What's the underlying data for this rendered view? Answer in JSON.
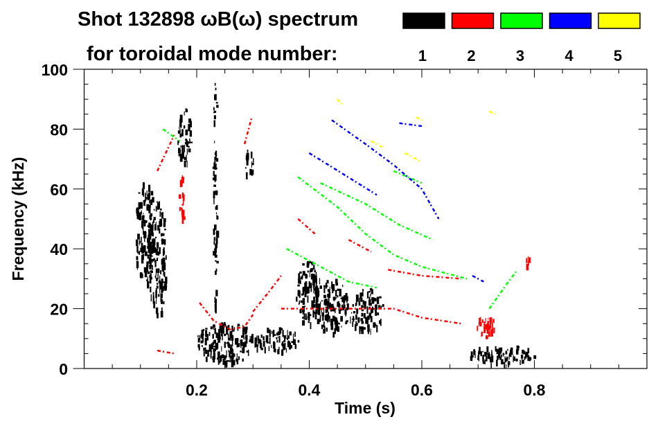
{
  "chart_data": {
    "type": "heatmap",
    "title": "Shot 132898 ωB(ω) spectrum",
    "subtitle": "for toroidal mode number:",
    "xlabel": "Time (s)",
    "ylabel": "Frequency (kHz)",
    "xlim": [
      0.0,
      1.0
    ],
    "ylim": [
      0,
      100
    ],
    "xticks": [
      0.2,
      0.4,
      0.6,
      0.8
    ],
    "xtick_labels": [
      "0.2",
      "0.4",
      "0.6",
      "0.8"
    ],
    "yticks": [
      0,
      20,
      40,
      60,
      80,
      100
    ],
    "ytick_labels": [
      "0",
      "20",
      "40",
      "60",
      "80",
      "100"
    ],
    "grid": false,
    "legend_placement": "top-right",
    "legend": [
      {
        "label": "1",
        "color": "#000000"
      },
      {
        "label": "2",
        "color": "#ff0000"
      },
      {
        "label": "3",
        "color": "#00ff00"
      },
      {
        "label": "4",
        "color": "#0000ff"
      },
      {
        "label": "5",
        "color": "#ffff00"
      }
    ],
    "blobs": [
      {
        "mode": 1,
        "t": [
          0.09,
          0.125
        ],
        "f": [
          28,
          63
        ]
      },
      {
        "mode": 1,
        "t": [
          0.115,
          0.145
        ],
        "f": [
          18,
          56
        ]
      },
      {
        "mode": 1,
        "t": [
          0.165,
          0.19
        ],
        "f": [
          68,
          87
        ]
      },
      {
        "mode": 1,
        "t": [
          0.285,
          0.3
        ],
        "f": [
          63,
          74
        ]
      },
      {
        "mode": 1,
        "t": [
          0.2,
          0.3
        ],
        "f": [
          2,
          16
        ]
      },
      {
        "mode": 1,
        "t": [
          0.3,
          0.38
        ],
        "f": [
          6,
          14
        ]
      },
      {
        "mode": 1,
        "t": [
          0.375,
          0.42
        ],
        "f": [
          15,
          36
        ]
      },
      {
        "mode": 1,
        "t": [
          0.41,
          0.47
        ],
        "f": [
          12,
          30
        ]
      },
      {
        "mode": 1,
        "t": [
          0.47,
          0.53
        ],
        "f": [
          13,
          27
        ]
      },
      {
        "mode": 1,
        "t": [
          0.68,
          0.8
        ],
        "f": [
          2,
          8
        ]
      },
      {
        "mode": 1,
        "t": [
          0.228,
          0.236
        ],
        "f": [
          20,
          99
        ]
      },
      {
        "mode": 2,
        "t": [
          0.168,
          0.178
        ],
        "f": [
          48,
          66
        ]
      },
      {
        "mode": 2,
        "t": [
          0.695,
          0.73
        ],
        "f": [
          11,
          18
        ]
      },
      {
        "mode": 2,
        "t": [
          0.78,
          0.79
        ],
        "f": [
          33,
          40
        ]
      }
    ],
    "ridges": [
      {
        "mode": 2,
        "points": [
          [
            0.13,
            66
          ],
          [
            0.145,
            72
          ],
          [
            0.16,
            78
          ]
        ]
      },
      {
        "mode": 2,
        "points": [
          [
            0.205,
            22
          ],
          [
            0.23,
            16
          ],
          [
            0.26,
            13
          ],
          [
            0.285,
            14
          ],
          [
            0.3,
            18
          ]
        ]
      },
      {
        "mode": 2,
        "points": [
          [
            0.3,
            19
          ],
          [
            0.33,
            26
          ],
          [
            0.35,
            31
          ]
        ]
      },
      {
        "mode": 2,
        "points": [
          [
            0.35,
            20
          ],
          [
            0.45,
            20
          ],
          [
            0.55,
            20
          ],
          [
            0.6,
            17
          ],
          [
            0.67,
            15
          ]
        ]
      },
      {
        "mode": 2,
        "points": [
          [
            0.285,
            75
          ],
          [
            0.298,
            84
          ]
        ]
      },
      {
        "mode": 2,
        "points": [
          [
            0.38,
            50
          ],
          [
            0.41,
            45
          ]
        ]
      },
      {
        "mode": 2,
        "points": [
          [
            0.47,
            43
          ],
          [
            0.51,
            39
          ]
        ]
      },
      {
        "mode": 2,
        "points": [
          [
            0.54,
            33
          ],
          [
            0.6,
            31
          ],
          [
            0.67,
            30
          ]
        ]
      },
      {
        "mode": 2,
        "points": [
          [
            0.13,
            6
          ],
          [
            0.16,
            5
          ]
        ]
      },
      {
        "mode": 3,
        "points": [
          [
            0.38,
            64
          ],
          [
            0.45,
            54
          ],
          [
            0.5,
            45
          ],
          [
            0.55,
            38
          ],
          [
            0.6,
            34
          ],
          [
            0.68,
            30
          ]
        ]
      },
      {
        "mode": 3,
        "points": [
          [
            0.36,
            40
          ],
          [
            0.42,
            34
          ],
          [
            0.47,
            29
          ],
          [
            0.52,
            27
          ]
        ]
      },
      {
        "mode": 3,
        "points": [
          [
            0.42,
            62
          ],
          [
            0.5,
            55
          ],
          [
            0.56,
            48
          ],
          [
            0.62,
            43
          ]
        ]
      },
      {
        "mode": 3,
        "points": [
          [
            0.14,
            80
          ],
          [
            0.17,
            76
          ]
        ]
      },
      {
        "mode": 3,
        "points": [
          [
            0.72,
            20
          ],
          [
            0.75,
            28
          ],
          [
            0.77,
            33
          ]
        ]
      },
      {
        "mode": 3,
        "points": [
          [
            0.55,
            66
          ],
          [
            0.6,
            62
          ]
        ]
      },
      {
        "mode": 4,
        "points": [
          [
            0.44,
            83
          ],
          [
            0.5,
            75
          ],
          [
            0.55,
            68
          ],
          [
            0.6,
            60
          ],
          [
            0.63,
            50
          ]
        ]
      },
      {
        "mode": 4,
        "points": [
          [
            0.4,
            72
          ],
          [
            0.46,
            65
          ],
          [
            0.52,
            58
          ]
        ]
      },
      {
        "mode": 4,
        "points": [
          [
            0.56,
            82
          ],
          [
            0.6,
            81
          ]
        ]
      },
      {
        "mode": 4,
        "points": [
          [
            0.69,
            31
          ],
          [
            0.71,
            29
          ]
        ]
      },
      {
        "mode": 5,
        "points": [
          [
            0.45,
            90
          ],
          [
            0.46,
            88
          ]
        ]
      },
      {
        "mode": 5,
        "points": [
          [
            0.51,
            76
          ],
          [
            0.53,
            74
          ]
        ]
      },
      {
        "mode": 5,
        "points": [
          [
            0.57,
            72
          ],
          [
            0.6,
            69
          ]
        ]
      },
      {
        "mode": 5,
        "points": [
          [
            0.72,
            86
          ],
          [
            0.73,
            85
          ]
        ]
      },
      {
        "mode": 5,
        "points": [
          [
            0.59,
            84
          ],
          [
            0.6,
            83
          ]
        ]
      }
    ]
  }
}
